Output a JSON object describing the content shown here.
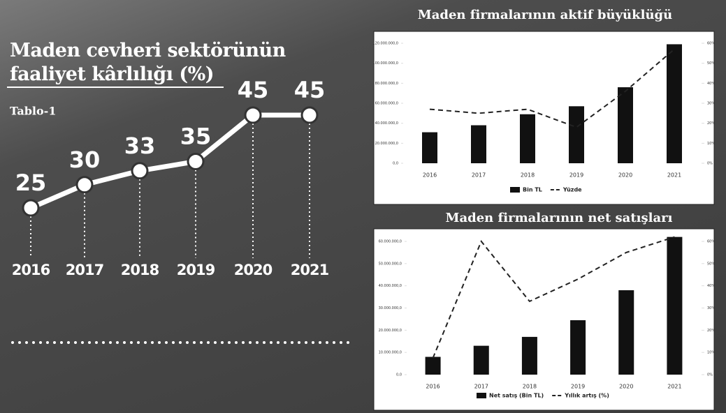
{
  "chart_data": [
    {
      "type": "line",
      "title": "Maden cevheri sektörünün faaliyet kârlılığı (%)",
      "subtitle": "Tablo-1",
      "categories": [
        "2016",
        "2017",
        "2018",
        "2019",
        "2020",
        "2021"
      ],
      "values": [
        25,
        30,
        33,
        35,
        45,
        45
      ],
      "color": "#ffffff"
    },
    {
      "type": "bar",
      "title": "Maden firmalarının aktif büyüklüğü",
      "categories": [
        "2016",
        "2017",
        "2018",
        "2019",
        "2020",
        "2021"
      ],
      "series": [
        {
          "name": "Bin TL",
          "color": "#111111",
          "values": [
            31000000,
            38000000,
            49000000,
            57000000,
            76000000,
            119000000
          ]
        },
        {
          "name": "Yüzde",
          "color": "#222222",
          "axis": "y2",
          "dash": true,
          "values": [
            27,
            25,
            27,
            18,
            36,
            57
          ]
        }
      ],
      "ylim": [
        0,
        120000000
      ],
      "yticks": [
        {
          "value": 0,
          "label": "0,0"
        },
        {
          "value": 20000000,
          "label": "20.000.000,0"
        },
        {
          "value": 40000000,
          "label": "40.000.000,0"
        },
        {
          "value": 60000000,
          "label": "60.000.000,0"
        },
        {
          "value": 80000000,
          "label": "80.000.000,0"
        },
        {
          "value": 100000000,
          "label": "100.000.000,0"
        },
        {
          "value": 120000000,
          "label": "120.000.000,0"
        }
      ],
      "y2lim": [
        0,
        60
      ],
      "y2ticks": [
        {
          "value": 0,
          "label": "0%"
        },
        {
          "value": 10,
          "label": "10%"
        },
        {
          "value": 20,
          "label": "20%"
        },
        {
          "value": 30,
          "label": "30%"
        },
        {
          "value": 40,
          "label": "40%"
        },
        {
          "value": 50,
          "label": "50%"
        },
        {
          "value": 60,
          "label": "60%"
        }
      ],
      "legend": "bottom"
    },
    {
      "type": "bar",
      "title": "Maden firmalarının net satışları",
      "categories": [
        "2016",
        "2017",
        "2018",
        "2019",
        "2020",
        "2021"
      ],
      "series": [
        {
          "name": "Net satış (Bin TL)",
          "color": "#111111",
          "values": [
            8000000,
            13000000,
            17000000,
            24500000,
            38000000,
            62000000
          ]
        },
        {
          "name": "Yıllık artış (%)",
          "color": "#222222",
          "axis": "y2",
          "dash": true,
          "values": [
            7.5,
            60,
            33,
            43,
            55,
            62
          ]
        }
      ],
      "ylim": [
        0,
        60000000
      ],
      "yticks": [
        {
          "value": 0,
          "label": "0,0"
        },
        {
          "value": 10000000,
          "label": "10.000.000,0"
        },
        {
          "value": 20000000,
          "label": "20.000.000,0"
        },
        {
          "value": 30000000,
          "label": "30.000.000,0"
        },
        {
          "value": 40000000,
          "label": "40.000.000,0"
        },
        {
          "value": 50000000,
          "label": "50.000.000,0"
        },
        {
          "value": 60000000,
          "label": "60.000.000,0"
        }
      ],
      "y2lim": [
        0,
        60
      ],
      "y2ticks": [
        {
          "value": 0,
          "label": "0%"
        },
        {
          "value": 10,
          "label": "10%"
        },
        {
          "value": 20,
          "label": "20%"
        },
        {
          "value": 30,
          "label": "30%"
        },
        {
          "value": 40,
          "label": "40%"
        },
        {
          "value": 50,
          "label": "50%"
        },
        {
          "value": 60,
          "label": "60%"
        }
      ],
      "legend": "bottom"
    }
  ]
}
